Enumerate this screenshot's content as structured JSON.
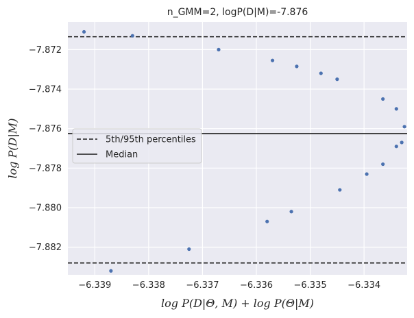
{
  "chart_data": {
    "type": "scatter",
    "title": "n_GMM=2, logP(D|M)=-7.876",
    "xlabel": "log P(D|Θ, M) + log P(Θ|M)",
    "ylabel": "log P(D|M)",
    "xlim": [
      -6.3395,
      -6.3332
    ],
    "ylim": [
      -7.8834,
      -7.8706
    ],
    "xticks": [
      -6.339,
      -6.338,
      -6.337,
      -6.336,
      -6.335,
      -6.334
    ],
    "xtick_labels": [
      "−6.339",
      "−6.338",
      "−6.337",
      "−6.336",
      "−6.335",
      "−6.334"
    ],
    "yticks": [
      -7.872,
      -7.874,
      -7.876,
      -7.878,
      -7.88,
      -7.882
    ],
    "ytick_labels": [
      "−7.872",
      "−7.874",
      "−7.876",
      "−7.878",
      "−7.880",
      "−7.882"
    ],
    "grid": true,
    "legend_position": "center-left",
    "series": [
      {
        "color": "#4c72b0",
        "points": [
          [
            -6.3392,
            -7.8711
          ],
          [
            -6.3383,
            -7.8713
          ],
          [
            -6.3387,
            -7.8832
          ],
          [
            -6.33725,
            -7.8821
          ],
          [
            -6.3367,
            -7.872
          ],
          [
            -6.3357,
            -7.87255
          ],
          [
            -6.33525,
            -7.87285
          ],
          [
            -6.3348,
            -7.8732
          ],
          [
            -6.3345,
            -7.8735
          ],
          [
            -6.33365,
            -7.8745
          ],
          [
            -6.3334,
            -7.875
          ],
          [
            -6.33325,
            -7.8759
          ],
          [
            -6.3333,
            -7.8767
          ],
          [
            -6.3334,
            -7.8769
          ],
          [
            -6.33365,
            -7.8778
          ],
          [
            -6.33395,
            -7.8783
          ],
          [
            -6.33445,
            -7.8791
          ],
          [
            -6.33535,
            -7.8802
          ],
          [
            -6.3358,
            -7.8807
          ]
        ]
      }
    ],
    "hlines": [
      {
        "y": -7.87135,
        "style": "dashed",
        "color": "#1a1a1a",
        "legend": "5th/95th percentiles"
      },
      {
        "y": -7.8828,
        "style": "dashed",
        "color": "#1a1a1a",
        "legend": "5th/95th percentiles"
      },
      {
        "y": -7.87625,
        "style": "solid",
        "color": "#1a1a1a",
        "legend": "Median"
      }
    ],
    "legend": [
      {
        "label": "5th/95th percentiles",
        "style": "dashed"
      },
      {
        "label": "Median",
        "style": "solid"
      }
    ],
    "colors": {
      "background": "#eaeaf2",
      "grid": "#ffffff",
      "marker": "#4c72b0",
      "line": "#1a1a1a"
    }
  }
}
